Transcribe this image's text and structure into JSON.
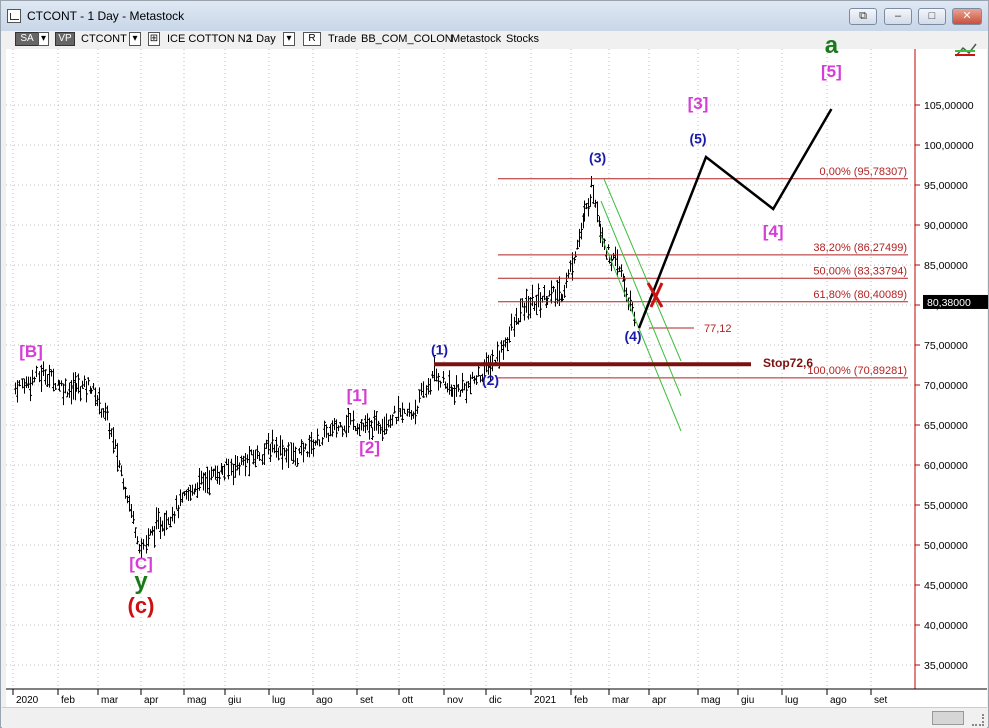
{
  "window": {
    "title": "CTCONT - 1 Day - Metastock",
    "buttons": {
      "restore_extra": "⧉",
      "minimize": "–",
      "maximize": "□",
      "close": "✕"
    }
  },
  "toolbar": {
    "sa_label": "SA",
    "vp_label": "VP",
    "symbol": "CTCONT",
    "name": "ICE COTTON N2",
    "period": "1 Day",
    "r_label": "R",
    "trade_label": "Trade",
    "exchange": "BB_COM_COLON",
    "app": "Metastock",
    "type": "Stocks",
    "arrow": "▾",
    "check": "⊞"
  },
  "colors": {
    "bars": "#000000",
    "grid": "#bfbfbf",
    "fib": "#b22222",
    "axis_text": "#c00000",
    "stop": "#7b1010",
    "channel": "#3cbe3c",
    "projection": "#000000",
    "magenta": "#d63cd6",
    "blue": "#1a1aa8",
    "green": "#1a7a1a",
    "red": "#cc1111"
  },
  "chart_data": {
    "type": "candlestick",
    "symbol": "CTCONT",
    "x_ticks": [
      "2020",
      "feb",
      "mar",
      "apr",
      "mag",
      "giu",
      "lug",
      "ago",
      "set",
      "ott",
      "nov",
      "dic",
      "2021",
      "feb",
      "mar",
      "apr",
      "mag",
      "giu",
      "lug",
      "ago",
      "set"
    ],
    "y_ticks": [
      "105,00000",
      "100,00000",
      "95,00000",
      "90,00000",
      "85,00000",
      "80,00000",
      "75,00000",
      "70,00000",
      "65,00000",
      "60,00000",
      "55,00000",
      "50,00000",
      "45,00000",
      "40,00000",
      "35,00000"
    ],
    "ylim": [
      32,
      112
    ],
    "last_price": "80,38000",
    "last_value": 80.38,
    "price_path": [
      {
        "t": 0,
        "v": 69.5
      },
      {
        "t": 0.7,
        "v": 71.5
      },
      {
        "t": 1.2,
        "v": 69.5
      },
      {
        "t": 1.8,
        "v": 70
      },
      {
        "t": 2.2,
        "v": 66
      },
      {
        "t": 2.6,
        "v": 58
      },
      {
        "t": 3.0,
        "v": 49.5
      },
      {
        "t": 3.3,
        "v": 52
      },
      {
        "t": 3.8,
        "v": 54.5
      },
      {
        "t": 4.3,
        "v": 57.5
      },
      {
        "t": 4.8,
        "v": 59
      },
      {
        "t": 5.5,
        "v": 60.5
      },
      {
        "t": 6.1,
        "v": 62.5
      },
      {
        "t": 6.6,
        "v": 61
      },
      {
        "t": 7.2,
        "v": 63.5
      },
      {
        "t": 7.8,
        "v": 65.5
      },
      {
        "t": 8.3,
        "v": 64.5
      },
      {
        "t": 8.8,
        "v": 66
      },
      {
        "t": 9.3,
        "v": 66.5
      },
      {
        "t": 9.8,
        "v": 71.5
      },
      {
        "t": 10.2,
        "v": 69
      },
      {
        "t": 10.6,
        "v": 70
      },
      {
        "t": 11.0,
        "v": 72
      },
      {
        "t": 11.3,
        "v": 74
      },
      {
        "t": 11.8,
        "v": 79.5
      },
      {
        "t": 12.3,
        "v": 81
      },
      {
        "t": 12.8,
        "v": 81.5
      },
      {
        "t": 13.3,
        "v": 90
      },
      {
        "t": 13.55,
        "v": 95
      },
      {
        "t": 13.9,
        "v": 87
      },
      {
        "t": 14.3,
        "v": 84
      },
      {
        "t": 14.65,
        "v": 77.5
      }
    ],
    "fib_levels": [
      {
        "label": "0,00% (95,78307)",
        "value": 95.78
      },
      {
        "label": "38,20% (86,27499)",
        "value": 86.27
      },
      {
        "label": "50,00% (83,33794)",
        "value": 83.34
      },
      {
        "label": "61,80% (80,40089)",
        "value": 80.4
      },
      {
        "label": "100,00% (70,89281)",
        "value": 70.89
      }
    ],
    "low_mark": {
      "label": "77,12",
      "value": 77.12
    },
    "stop": {
      "label": "Stop72,6",
      "value": 72.6
    },
    "projection": [
      {
        "t": 14.75,
        "v": 77.12
      },
      {
        "t": 16.2,
        "v": 98.5
      },
      {
        "t": 17.8,
        "v": 92
      },
      {
        "t": 19.1,
        "v": 104.5
      }
    ],
    "wave_labels": [
      {
        "text": "[B]",
        "t": 0.4,
        "v": 73.5,
        "color": "magenta"
      },
      {
        "text": "[C]",
        "t": 3.0,
        "v": 47.0,
        "color": "magenta"
      },
      {
        "text": "y",
        "t": 3.0,
        "v": 44.5,
        "color": "green"
      },
      {
        "text": "(c)",
        "t": 3.0,
        "v": 41.5,
        "color": "red"
      },
      {
        "text": "[1]",
        "t": 8.0,
        "v": 68.0,
        "color": "magenta"
      },
      {
        "text": "[2]",
        "t": 8.3,
        "v": 61.5,
        "color": "magenta"
      },
      {
        "text": "(1)",
        "t": 9.9,
        "v": 73.8,
        "color": "blue"
      },
      {
        "text": "(2)",
        "t": 11.1,
        "v": 70.0,
        "color": "blue"
      },
      {
        "text": "(3)",
        "t": 13.7,
        "v": 97.8,
        "color": "blue"
      },
      {
        "text": "(4)",
        "t": 14.6,
        "v": 75.5,
        "color": "blue"
      },
      {
        "text": "[3]",
        "t": 16.0,
        "v": 104.5,
        "color": "magenta"
      },
      {
        "text": "(5)",
        "t": 16.0,
        "v": 100.2,
        "color": "blue"
      },
      {
        "text": "[4]",
        "t": 17.8,
        "v": 88.5,
        "color": "magenta"
      },
      {
        "text": "[5]",
        "t": 19.1,
        "v": 108.5,
        "color": "magenta"
      },
      {
        "text": "a",
        "t": 19.1,
        "v": 111.5,
        "color": "green"
      }
    ]
  }
}
